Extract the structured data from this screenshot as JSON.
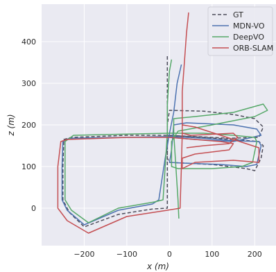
{
  "chart_data": {
    "type": "line",
    "xlabel": "x (m)",
    "ylabel": "z (m)",
    "xlim": [
      -300,
      250
    ],
    "ylim": [
      -90,
      490
    ],
    "xticks": [
      -200,
      -100,
      0,
      100,
      200
    ],
    "yticks": [
      0,
      100,
      200,
      300,
      400
    ],
    "grid": true,
    "legend_position": "top-right",
    "series": [
      {
        "name": "GT",
        "color": "#4c4c5a",
        "dash": true,
        "points": [
          [
            -5,
            365
          ],
          [
            -5,
            200
          ],
          [
            -5,
            0
          ],
          [
            -40,
            -2
          ],
          [
            -120,
            -15
          ],
          [
            -200,
            -45
          ],
          [
            -235,
            -10
          ],
          [
            -250,
            20
          ],
          [
            -250,
            100
          ],
          [
            -248,
            165
          ],
          [
            -230,
            170
          ],
          [
            -100,
            175
          ],
          [
            -5,
            175
          ],
          [
            80,
            170
          ],
          [
            150,
            165
          ],
          [
            210,
            160
          ],
          [
            220,
            150
          ],
          [
            215,
            120
          ],
          [
            200,
            90
          ],
          [
            180,
            95
          ],
          [
            100,
            105
          ],
          [
            0,
            110
          ],
          [
            -5,
            120
          ],
          [
            -5,
            200
          ],
          [
            0,
            235
          ],
          [
            80,
            233
          ],
          [
            150,
            225
          ],
          [
            200,
            215
          ],
          [
            220,
            195
          ],
          [
            210,
            170
          ],
          [
            140,
            168
          ],
          [
            60,
            172
          ],
          [
            -5,
            175
          ]
        ]
      },
      {
        "name": "MDN-VO",
        "color": "#4c72b0",
        "dash": false,
        "points": [
          [
            28,
            345
          ],
          [
            18,
            300
          ],
          [
            10,
            230
          ],
          [
            0,
            180
          ],
          [
            -10,
            120
          ],
          [
            -25,
            20
          ],
          [
            -40,
            10
          ],
          [
            -120,
            -5
          ],
          [
            -200,
            -40
          ],
          [
            -240,
            -5
          ],
          [
            -252,
            20
          ],
          [
            -252,
            100
          ],
          [
            -250,
            160
          ],
          [
            -235,
            168
          ],
          [
            -100,
            170
          ],
          [
            0,
            172
          ],
          [
            80,
            168
          ],
          [
            150,
            162
          ],
          [
            210,
            160
          ],
          [
            215,
            150
          ],
          [
            205,
            105
          ],
          [
            180,
            100
          ],
          [
            120,
            105
          ],
          [
            40,
            108
          ],
          [
            0,
            110
          ],
          [
            5,
            140
          ],
          [
            10,
            200
          ],
          [
            40,
            205
          ],
          [
            150,
            200
          ],
          [
            205,
            190
          ],
          [
            215,
            175
          ],
          [
            150,
            160
          ],
          [
            60,
            165
          ],
          [
            0,
            170
          ]
        ]
      },
      {
        "name": "DeepVO",
        "color": "#55a868",
        "dash": false,
        "points": [
          [
            5,
            357
          ],
          [
            0,
            330
          ],
          [
            -5,
            250
          ],
          [
            -5,
            180
          ],
          [
            -10,
            100
          ],
          [
            -15,
            20
          ],
          [
            -35,
            15
          ],
          [
            -120,
            0
          ],
          [
            -190,
            -35
          ],
          [
            -230,
            -5
          ],
          [
            -245,
            20
          ],
          [
            -245,
            100
          ],
          [
            -245,
            160
          ],
          [
            -225,
            175
          ],
          [
            -100,
            178
          ],
          [
            0,
            180
          ],
          [
            80,
            180
          ],
          [
            150,
            175
          ],
          [
            200,
            170
          ],
          [
            205,
            160
          ],
          [
            195,
            110
          ],
          [
            170,
            100
          ],
          [
            100,
            95
          ],
          [
            20,
            95
          ],
          [
            5,
            100
          ],
          [
            5,
            160
          ],
          [
            20,
            185
          ],
          [
            100,
            200
          ],
          [
            200,
            220
          ],
          [
            230,
            235
          ],
          [
            220,
            250
          ],
          [
            150,
            230
          ],
          [
            60,
            220
          ],
          [
            10,
            215
          ],
          [
            10,
            180
          ],
          [
            15,
            100
          ],
          [
            20,
            20
          ],
          [
            22,
            -25
          ]
        ]
      },
      {
        "name": "ORB-SLAM",
        "color": "#c44e52",
        "dash": false,
        "points": [
          [
            45,
            470
          ],
          [
            40,
            420
          ],
          [
            35,
            350
          ],
          [
            30,
            280
          ],
          [
            30,
            220
          ],
          [
            30,
            180
          ],
          [
            28,
            100
          ],
          [
            25,
            0
          ],
          [
            -5,
            -5
          ],
          [
            -100,
            -20
          ],
          [
            -190,
            -60
          ],
          [
            -240,
            -30
          ],
          [
            -262,
            0
          ],
          [
            -262,
            100
          ],
          [
            -255,
            160
          ],
          [
            -240,
            165
          ],
          [
            -100,
            170
          ],
          [
            0,
            170
          ],
          [
            60,
            165
          ],
          [
            120,
            160
          ],
          [
            150,
            155
          ],
          [
            140,
            140
          ],
          [
            60,
            130
          ],
          [
            30,
            120
          ],
          [
            30,
            95
          ],
          [
            60,
            110
          ],
          [
            150,
            115
          ],
          [
            210,
            110
          ],
          [
            210,
            145
          ],
          [
            150,
            165
          ],
          [
            60,
            195
          ],
          [
            30,
            200
          ],
          [
            30,
            180
          ],
          [
            50,
            175
          ],
          [
            150,
            180
          ],
          [
            160,
            170
          ],
          [
            140,
            155
          ],
          [
            80,
            150
          ],
          [
            40,
            145
          ]
        ]
      }
    ]
  }
}
